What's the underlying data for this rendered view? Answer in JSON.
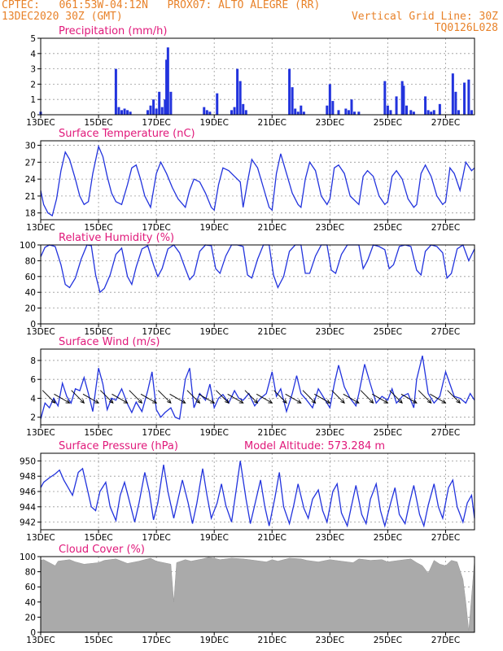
{
  "header": {
    "line1": "CPTEC:   061:53W-04:12N   PROX07: ALTO ALEGRE (RR)",
    "line2_left": "13DEC2020 30Z (GMT)",
    "line2_right": "Vertical Grid Line: 30Z",
    "line3_right": "TQ0126L028"
  },
  "colors": {
    "header": "#e8822a",
    "title": "#e0187a",
    "series": "#2233dd",
    "cloud": "#aaaaaa",
    "grid": "#999999"
  },
  "x_tick_labels": [
    "13DEC",
    "15DEC",
    "17DEC",
    "19DEC",
    "21DEC",
    "23DEC",
    "25DEC",
    "27DEC"
  ],
  "x_tick_days": [
    0,
    2,
    4,
    6,
    8,
    10,
    12,
    14
  ],
  "x_range_days": [
    0,
    15
  ],
  "chart_data": [
    {
      "id": "precip",
      "type": "bar",
      "title": "Precipitation (mm/h)",
      "ylim": [
        0,
        5
      ],
      "yticks": [
        0,
        1,
        2,
        3,
        4,
        5
      ],
      "grid": true,
      "x": [
        0.0,
        2.6,
        2.7,
        2.8,
        2.9,
        3.0,
        3.1,
        3.7,
        3.8,
        3.9,
        4.0,
        4.1,
        4.2,
        4.3,
        4.35,
        4.4,
        4.5,
        5.65,
        5.75,
        5.85,
        6.1,
        6.6,
        6.7,
        6.8,
        6.9,
        7.0,
        7.1,
        8.6,
        8.7,
        8.8,
        8.9,
        9.0,
        9.1,
        9.9,
        10.0,
        10.1,
        10.3,
        10.55,
        10.65,
        10.75,
        10.85,
        11.0,
        11.9,
        12.0,
        12.1,
        12.3,
        12.5,
        12.55,
        12.65,
        12.8,
        12.9,
        13.3,
        13.4,
        13.5,
        13.6,
        13.8,
        14.25,
        14.35,
        14.45,
        14.65,
        14.8,
        14.9
      ],
      "values": [
        0.2,
        3.0,
        0.5,
        0.3,
        0.4,
        0.3,
        0.2,
        0.3,
        0.6,
        1.0,
        0.4,
        1.5,
        0.5,
        1.0,
        3.6,
        4.4,
        1.5,
        0.5,
        0.3,
        0.2,
        1.4,
        0.3,
        0.5,
        3.0,
        2.2,
        0.7,
        0.3,
        3.0,
        1.8,
        0.4,
        0.2,
        0.6,
        0.2,
        0.6,
        2.0,
        0.9,
        0.3,
        0.4,
        0.3,
        1.0,
        0.2,
        0.2,
        2.2,
        0.6,
        0.3,
        1.2,
        2.2,
        1.9,
        0.6,
        0.3,
        0.2,
        1.2,
        0.3,
        0.2,
        0.3,
        0.7,
        2.7,
        1.5,
        0.3,
        2.1,
        2.3,
        0.3
      ]
    },
    {
      "id": "temp",
      "type": "line",
      "title": "Surface Temperature (nC)",
      "ylim": [
        16.8,
        30.8
      ],
      "yticks": [
        18,
        21,
        24,
        27,
        30
      ],
      "grid": true,
      "x": [
        0,
        0.1,
        0.25,
        0.4,
        0.55,
        0.7,
        0.85,
        1.0,
        1.2,
        1.35,
        1.5,
        1.65,
        1.8,
        2.0,
        2.15,
        2.3,
        2.45,
        2.6,
        2.8,
        3.0,
        3.15,
        3.3,
        3.45,
        3.6,
        3.8,
        4.0,
        4.15,
        4.35,
        4.55,
        4.75,
        5.0,
        5.15,
        5.3,
        5.5,
        5.7,
        5.9,
        6.0,
        6.15,
        6.3,
        6.5,
        6.7,
        6.9,
        7.0,
        7.15,
        7.3,
        7.5,
        7.7,
        7.9,
        8.0,
        8.15,
        8.3,
        8.5,
        8.7,
        8.9,
        9.0,
        9.15,
        9.3,
        9.5,
        9.7,
        9.9,
        10.0,
        10.15,
        10.3,
        10.5,
        10.7,
        10.9,
        11.0,
        11.15,
        11.3,
        11.5,
        11.7,
        11.9,
        12.0,
        12.15,
        12.3,
        12.5,
        12.7,
        12.9,
        13.0,
        13.15,
        13.3,
        13.5,
        13.7,
        13.9,
        14.0,
        14.15,
        14.3,
        14.5,
        14.7,
        14.9,
        15.0
      ],
      "values": [
        22,
        19.5,
        18.0,
        17.5,
        20.5,
        25.5,
        28.8,
        27.5,
        24.0,
        21.0,
        19.5,
        20.0,
        25.0,
        29.8,
        28.0,
        24.5,
        21.5,
        20.0,
        19.5,
        23.0,
        26.0,
        26.5,
        24.0,
        21.0,
        19.0,
        25.0,
        27.0,
        25.0,
        22.5,
        20.5,
        19.0,
        22.0,
        24.0,
        23.5,
        21.5,
        19.0,
        18.5,
        23.0,
        26.0,
        25.5,
        24.5,
        23.5,
        19.0,
        23.5,
        27.5,
        26.0,
        22.5,
        19.0,
        18.5,
        25.0,
        28.5,
        25.0,
        21.5,
        19.5,
        19.0,
        24.0,
        27.0,
        25.5,
        21.0,
        19.5,
        20.5,
        26.0,
        26.5,
        25.0,
        21.0,
        20.0,
        19.5,
        24.5,
        25.5,
        24.5,
        21.0,
        19.5,
        20.0,
        24.5,
        25.5,
        24.0,
        20.5,
        19.0,
        19.5,
        25.0,
        26.5,
        24.5,
        21.0,
        19.5,
        20.0,
        26.0,
        25.0,
        22.0,
        27.0,
        25.5,
        26.0
      ]
    },
    {
      "id": "rh",
      "type": "line",
      "title": "Relative Humidity (%)",
      "ylim": [
        0,
        100
      ],
      "yticks": [
        0,
        20,
        40,
        60,
        80,
        100
      ],
      "grid": true,
      "x": [
        0,
        0.15,
        0.3,
        0.5,
        0.7,
        0.85,
        1.0,
        1.2,
        1.4,
        1.6,
        1.75,
        1.9,
        2.05,
        2.2,
        2.4,
        2.6,
        2.8,
        3.0,
        3.15,
        3.3,
        3.5,
        3.7,
        3.9,
        4.05,
        4.2,
        4.4,
        4.6,
        4.8,
        5.0,
        5.15,
        5.3,
        5.5,
        5.7,
        5.9,
        6.05,
        6.2,
        6.4,
        6.6,
        6.8,
        7.0,
        7.15,
        7.3,
        7.5,
        7.7,
        7.9,
        8.05,
        8.2,
        8.4,
        8.6,
        8.8,
        9.0,
        9.15,
        9.3,
        9.5,
        9.7,
        9.9,
        10.05,
        10.2,
        10.4,
        10.6,
        10.8,
        11.0,
        11.15,
        11.3,
        11.5,
        11.7,
        11.9,
        12.05,
        12.2,
        12.4,
        12.6,
        12.8,
        13.0,
        13.15,
        13.3,
        13.5,
        13.7,
        13.9,
        14.05,
        14.2,
        14.4,
        14.6,
        14.8,
        15.0
      ],
      "values": [
        85,
        97,
        100,
        98,
        75,
        50,
        46,
        58,
        82,
        100,
        99,
        62,
        40,
        45,
        62,
        88,
        96,
        60,
        50,
        72,
        95,
        99,
        75,
        60,
        70,
        95,
        100,
        90,
        70,
        56,
        62,
        92,
        100,
        99,
        70,
        64,
        86,
        100,
        100,
        98,
        62,
        58,
        82,
        100,
        100,
        62,
        46,
        60,
        92,
        100,
        100,
        64,
        64,
        86,
        100,
        100,
        68,
        64,
        88,
        100,
        100,
        100,
        70,
        80,
        100,
        98,
        94,
        70,
        75,
        98,
        100,
        98,
        68,
        62,
        92,
        100,
        98,
        90,
        58,
        64,
        95,
        100,
        80,
        95
      ]
    },
    {
      "id": "wind",
      "type": "line",
      "title": "Surface Wind (m/s)",
      "ylim": [
        1.2,
        9.2
      ],
      "yticks": [
        2,
        4,
        6,
        8
      ],
      "grid": true,
      "x": [
        0,
        0.15,
        0.3,
        0.45,
        0.6,
        0.75,
        0.9,
        1.05,
        1.2,
        1.35,
        1.5,
        1.65,
        1.8,
        2.0,
        2.15,
        2.3,
        2.45,
        2.6,
        2.8,
        3.0,
        3.15,
        3.3,
        3.5,
        3.7,
        3.85,
        4.0,
        4.15,
        4.3,
        4.5,
        4.65,
        4.8,
        5.0,
        5.15,
        5.3,
        5.5,
        5.7,
        5.85,
        6.0,
        6.15,
        6.3,
        6.5,
        6.7,
        6.85,
        7.0,
        7.2,
        7.4,
        7.6,
        7.8,
        8.0,
        8.15,
        8.3,
        8.5,
        8.7,
        8.85,
        9.0,
        9.2,
        9.4,
        9.6,
        9.8,
        10.0,
        10.15,
        10.3,
        10.5,
        10.7,
        10.9,
        11.0,
        11.2,
        11.4,
        11.6,
        11.8,
        12.0,
        12.15,
        12.3,
        12.5,
        12.7,
        12.9,
        13.0,
        13.2,
        13.4,
        13.6,
        13.8,
        14.0,
        14.15,
        14.3,
        14.5,
        14.7,
        14.85,
        15.0
      ],
      "values": [
        1.8,
        3.5,
        3.0,
        4.0,
        3.2,
        5.6,
        4.2,
        3.5,
        5.0,
        4.8,
        6.2,
        4.5,
        2.6,
        7.2,
        5.5,
        2.8,
        4.0,
        3.8,
        5.0,
        3.4,
        2.5,
        3.6,
        2.6,
        4.8,
        6.8,
        2.8,
        2.0,
        2.5,
        3.0,
        2.0,
        1.8,
        6.0,
        7.2,
        3.0,
        4.5,
        3.8,
        5.5,
        3.0,
        4.0,
        4.4,
        3.5,
        4.8,
        4.0,
        3.8,
        4.5,
        3.2,
        4.0,
        4.5,
        6.8,
        4.2,
        5.0,
        2.6,
        4.5,
        6.4,
        4.5,
        3.8,
        3.0,
        5.0,
        4.0,
        3.0,
        5.5,
        7.5,
        5.2,
        4.0,
        3.2,
        4.5,
        7.6,
        5.5,
        3.5,
        4.2,
        3.8,
        5.0,
        3.5,
        4.2,
        4.5,
        3.0,
        6.0,
        8.5,
        4.5,
        3.5,
        4.2,
        6.8,
        5.5,
        4.2,
        4.0,
        3.5,
        4.5,
        3.8
      ]
    },
    {
      "id": "pres",
      "type": "line",
      "title": "Surface Pressure (hPa)",
      "subtitle": "Model Altitude: 573.284 m",
      "ylim": [
        941.0,
        951.0
      ],
      "yticks": [
        942,
        944,
        946,
        948,
        950
      ],
      "grid": true,
      "x": [
        0,
        0.1,
        0.3,
        0.5,
        0.65,
        0.8,
        0.95,
        1.1,
        1.3,
        1.45,
        1.6,
        1.75,
        1.9,
        2.05,
        2.25,
        2.4,
        2.6,
        2.75,
        2.9,
        3.05,
        3.25,
        3.4,
        3.6,
        3.75,
        3.9,
        4.05,
        4.25,
        4.4,
        4.6,
        4.75,
        4.9,
        5.1,
        5.25,
        5.4,
        5.6,
        5.75,
        5.9,
        6.1,
        6.25,
        6.4,
        6.6,
        6.75,
        6.9,
        7.1,
        7.25,
        7.4,
        7.6,
        7.75,
        7.9,
        8.1,
        8.25,
        8.4,
        8.6,
        8.75,
        8.9,
        9.1,
        9.25,
        9.4,
        9.6,
        9.75,
        9.9,
        10.1,
        10.25,
        10.4,
        10.6,
        10.75,
        10.9,
        11.1,
        11.25,
        11.4,
        11.6,
        11.75,
        11.9,
        12.1,
        12.25,
        12.4,
        12.6,
        12.75,
        12.9,
        13.1,
        13.25,
        13.4,
        13.6,
        13.75,
        13.9,
        14.1,
        14.25,
        14.4,
        14.6,
        14.75,
        14.9,
        15.0
      ],
      "values": [
        946.5,
        947.2,
        947.8,
        948.3,
        948.8,
        947.5,
        946.5,
        945.5,
        948.5,
        949.0,
        946.5,
        944.0,
        943.5,
        946.0,
        947.2,
        944.0,
        942.2,
        945.5,
        947.2,
        945.0,
        942.0,
        944.5,
        948.5,
        946.0,
        942.3,
        944.5,
        949.5,
        946.0,
        942.5,
        945.0,
        947.5,
        944.5,
        941.8,
        944.5,
        949.0,
        945.5,
        942.5,
        944.5,
        947.0,
        944.2,
        942.0,
        946.0,
        950.0,
        945.0,
        941.8,
        944.2,
        947.5,
        944.0,
        941.5,
        945.2,
        948.5,
        944.0,
        941.8,
        944.2,
        947.0,
        943.8,
        942.5,
        945.0,
        946.2,
        943.5,
        942.0,
        946.0,
        947.0,
        943.2,
        941.5,
        944.2,
        946.8,
        943.0,
        941.8,
        945.0,
        947.0,
        943.5,
        941.5,
        944.5,
        946.5,
        943.0,
        941.8,
        944.5,
        946.8,
        943.0,
        941.5,
        944.2,
        947.0,
        944.0,
        942.5,
        946.5,
        947.5,
        944.0,
        942.0,
        944.5,
        945.5,
        942.5
      ]
    },
    {
      "id": "cloud",
      "type": "area",
      "title": "Cloud Cover (%)",
      "ylim": [
        0,
        100
      ],
      "yticks": [
        0,
        20,
        40,
        60,
        80,
        100
      ],
      "grid": true,
      "x": [
        0,
        0.1,
        0.4,
        0.5,
        0.6,
        1.0,
        1.2,
        1.5,
        2.0,
        2.2,
        2.6,
        3.0,
        3.4,
        3.6,
        3.8,
        4.0,
        4.5,
        4.6,
        4.7,
        5.0,
        5.2,
        5.6,
        5.8,
        6.0,
        6.2,
        6.6,
        7.0,
        7.4,
        7.8,
        8.0,
        8.2,
        8.6,
        9.0,
        9.2,
        9.6,
        10.0,
        10.4,
        10.8,
        11.0,
        11.4,
        11.8,
        12.0,
        12.4,
        12.8,
        13.0,
        13.2,
        13.4,
        13.6,
        13.8,
        14.0,
        14.2,
        14.4,
        14.6,
        14.7,
        14.8,
        15.0
      ],
      "values": [
        95,
        96,
        90,
        88,
        94,
        96,
        93,
        90,
        92,
        95,
        97,
        91,
        94,
        96,
        98,
        94,
        90,
        40,
        92,
        96,
        94,
        97,
        99,
        98,
        96,
        98,
        97,
        95,
        93,
        96,
        94,
        98,
        97,
        95,
        93,
        96,
        94,
        92,
        97,
        95,
        96,
        93,
        95,
        97,
        92,
        88,
        78,
        95,
        90,
        88,
        95,
        93,
        70,
        40,
        2,
        95
      ]
    }
  ]
}
